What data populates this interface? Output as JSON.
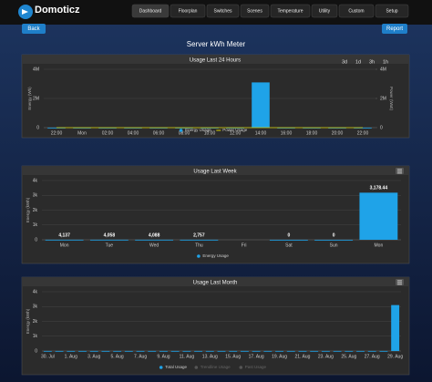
{
  "header": {
    "logo": "Domoticz",
    "nav": [
      "Dashboard",
      "Floorplan",
      "Switches",
      "Scenes",
      "Temperature",
      "Utility",
      "Custom",
      "Setup"
    ]
  },
  "buttons": {
    "back": "Back",
    "report": "Report"
  },
  "page_title": "Server kWh Meter",
  "chart_data": [
    {
      "type": "bar",
      "title": "Usage Last 24 Hours",
      "range_buttons": [
        "3d",
        "1d",
        "3h",
        "1h"
      ],
      "ylabel": "Energy (Wh)",
      "y2label": "Power (Watt)",
      "categories": [
        "22:00",
        "Mon",
        "02:00",
        "04:00",
        "06:00",
        "08:00",
        "10:00",
        "12:00",
        "14:00",
        "16:00",
        "18:00",
        "20:00",
        "22:00"
      ],
      "series": [
        {
          "name": "Energy Usage",
          "color": "#1fa3e8",
          "values": [
            0,
            0,
            0,
            0,
            0,
            0,
            0,
            0,
            3100000,
            0,
            0,
            0,
            0
          ]
        },
        {
          "name": "Power Usage",
          "color": "#d9d200",
          "type": "line",
          "axis": "y2",
          "values": [
            0,
            0,
            0,
            0,
            0,
            0,
            0,
            0,
            0,
            0,
            0,
            0,
            0
          ]
        }
      ],
      "ylim": [
        0,
        4000000
      ],
      "yticks": [
        0,
        {
          "value": 2000000,
          "label": "2M"
        },
        {
          "value": 4000000,
          "label": "4M"
        }
      ],
      "y2lim": [
        0,
        4000000
      ],
      "y2ticks": [
        0,
        {
          "value": 2000000,
          "label": "2M"
        },
        {
          "value": 4000000,
          "label": "4M"
        }
      ]
    },
    {
      "type": "bar",
      "title": "Usage Last Week",
      "ylabel": "Energy (kWh)",
      "categories": [
        "Mon",
        "Tue",
        "Wed",
        "Thu",
        "Fri",
        "Sat",
        "Sun",
        "Mon"
      ],
      "series": [
        {
          "name": "Energy Usage",
          "color": "#1fa3e8",
          "values": [
            4.137,
            4.058,
            4.088,
            2.757,
            null,
            0,
            0,
            3178.44
          ],
          "value_labels": [
            "4,137",
            "4,058",
            "4,088",
            "2,757",
            null,
            "0",
            "0",
            "3,178.44"
          ]
        }
      ],
      "ylim": [
        0,
        4000
      ],
      "yticks": [
        0,
        {
          "value": 1000,
          "label": "1k"
        },
        {
          "value": 2000,
          "label": "2k"
        },
        {
          "value": 3000,
          "label": "3k"
        },
        {
          "value": 4000,
          "label": "4k"
        }
      ]
    },
    {
      "type": "bar",
      "title": "Usage Last Month",
      "ylabel": "Energy (kWh)",
      "categories": [
        "30. Jul",
        null,
        "1. Aug",
        null,
        "3. Aug",
        null,
        "5. Aug",
        null,
        "7. Aug",
        null,
        "9. Aug",
        null,
        "11. Aug",
        null,
        "13. Aug",
        null,
        "15. Aug",
        null,
        "17. Aug",
        null,
        "19. Aug",
        null,
        "21. Aug",
        null,
        "23. Aug",
        null,
        "25. Aug",
        null,
        "27. Aug",
        null,
        "29. Aug"
      ],
      "series": [
        {
          "name": "Total Usage",
          "color": "#1fa3e8",
          "values": [
            4,
            4,
            4,
            4,
            4,
            4,
            4,
            4,
            4,
            4,
            4,
            4,
            4,
            4,
            4,
            4,
            4,
            4,
            4,
            4,
            4,
            4,
            4,
            4,
            4,
            4,
            4,
            4,
            4,
            4,
            3100
          ]
        },
        {
          "name": "Trendline Usage",
          "color": "#555555"
        },
        {
          "name": "Past Usage",
          "color": "#555555"
        }
      ],
      "ylim": [
        0,
        4000
      ],
      "yticks": [
        0,
        {
          "value": 1000,
          "label": "1k"
        },
        {
          "value": 2000,
          "label": "2k"
        },
        {
          "value": 3000,
          "label": "3k"
        },
        {
          "value": 4000,
          "label": "4k"
        }
      ]
    }
  ]
}
